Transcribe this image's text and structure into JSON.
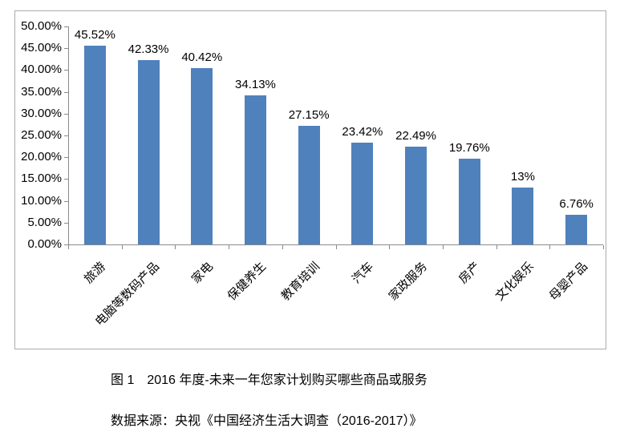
{
  "chart_data": {
    "type": "bar",
    "title": "图 1　2016 年度-未来一年您家计划购买哪些商品或服务",
    "source_note": "数据来源：央视《中国经济生活大调查（2016-2017）》",
    "categories": [
      "旅游",
      "电脑等数码产品",
      "家电",
      "保健养生",
      "教育培训",
      "汽车",
      "家政服务",
      "房产",
      "文化娱乐",
      "母婴产品"
    ],
    "values": [
      45.52,
      42.33,
      40.42,
      34.13,
      27.15,
      23.42,
      22.49,
      19.76,
      13,
      6.76
    ],
    "value_labels": [
      "45.52%",
      "42.33%",
      "40.42%",
      "34.13%",
      "27.15%",
      "23.42%",
      "22.49%",
      "19.76%",
      "13%",
      "6.76%"
    ],
    "xlabel": "",
    "ylabel": "",
    "y_tick_labels": [
      "0.00%",
      "5.00%",
      "10.00%",
      "15.00%",
      "20.00%",
      "25.00%",
      "30.00%",
      "35.00%",
      "40.00%",
      "45.00%",
      "50.00%"
    ],
    "ylim": [
      0,
      50
    ],
    "grid": false,
    "legend": false,
    "bar_label_position": "above",
    "x_label_rotation_deg": 45,
    "colors": {
      "bar": "#4F81BD",
      "axis": "#8a8a8a",
      "frame": "#ababab",
      "text": "#000000",
      "background": "#ffffff"
    }
  }
}
